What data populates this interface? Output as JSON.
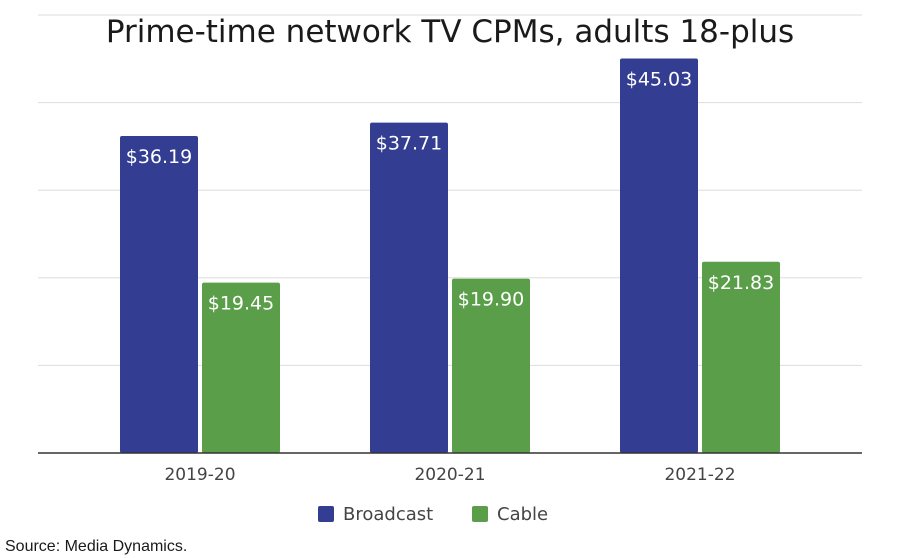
{
  "chart_data": {
    "type": "bar",
    "title": "Prime-time network TV CPMs, adults 18-plus",
    "categories": [
      "2019-20",
      "2020-21",
      "2021-22"
    ],
    "series": [
      {
        "name": "Broadcast",
        "color": "#333d91",
        "values": [
          36.19,
          37.71,
          45.03
        ],
        "labels": [
          "$36.19",
          "$37.71",
          "$45.03"
        ]
      },
      {
        "name": "Cable",
        "color": "#5b9e49",
        "values": [
          19.45,
          19.9,
          21.83
        ],
        "labels": [
          "$19.45",
          "$19.90",
          "$21.83"
        ]
      }
    ],
    "ylim": [
      0,
      50
    ],
    "y_grid_step": 10,
    "grid": true,
    "show_y_tick_labels": false,
    "legend_position": "bottom-center",
    "xlabel": "",
    "ylabel": ""
  },
  "source": "Source: Media Dynamics."
}
